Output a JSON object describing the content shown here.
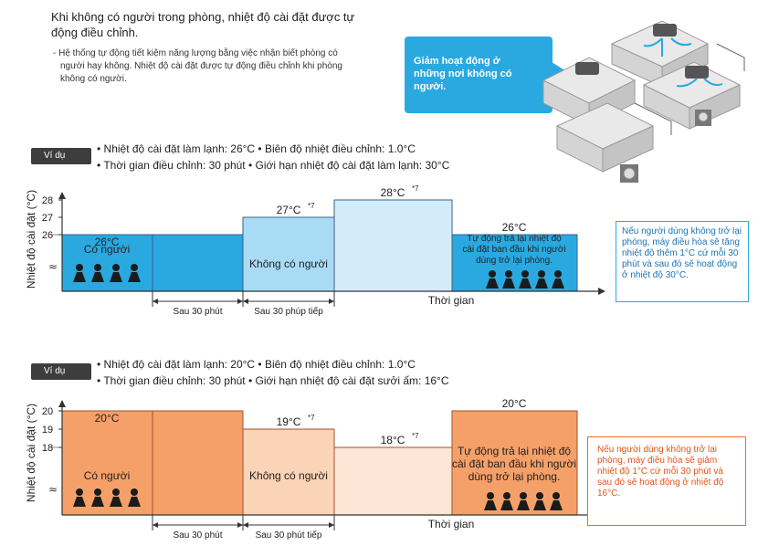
{
  "intro": {
    "title": "Khi không có người trong phòng, nhiệt độ cài đặt được tự động điều chỉnh.",
    "note": "- Hệ thống tự động tiết kiệm năng lượng bằng việc nhận biết phòng có người hay không. Nhiệt độ cài đặt được tự động điều chỉnh khi phòng không có người."
  },
  "callout": {
    "text": "Giảm hoạt động ở những nơi không có người."
  },
  "colors": {
    "blue_dark": "#29a9e0",
    "blue_light": "#d4ecfa",
    "orange_dark": "#f5a068",
    "orange_light": "#fde6d6",
    "outline": "#3b5f8a"
  },
  "examples": [
    {
      "tag": "Ví dụ",
      "line1": "• Nhiệt độ cài đặt làm lạnh: 26°C   • Biên độ nhiệt điều chỉnh: 1.0°C",
      "line2": "• Thời gian điều chỉnh: 30 phút   • Giới hạn nhiệt độ cài đặt làm lạnh: 30°C",
      "note": "Nếu người dùng không trở lại phòng, máy điều hòa sẽ tăng nhiệt độ thêm 1°C cứ mỗi 30 phút và sau đó sẽ hoạt động ở nhiệt độ 30°C."
    },
    {
      "tag": "Ví dụ",
      "line1": "• Nhiệt độ cài đặt làm lạnh: 20°C   • Biên độ nhiệt điều chỉnh: 1.0°C",
      "line2": "• Thời gian điều chỉnh: 30 phút   • Giới hạn nhiệt độ cài đặt sưởi ấm: 16°C",
      "note": "Nếu người dùng không trở lại phòng, máy điều hòa sẽ giảm nhiệt độ 1°C cứ mỗi 30 phút và sau đó sẽ hoạt động ở nhiệt độ 16°C."
    }
  ],
  "chart_data": [
    {
      "type": "area",
      "ylabel": "Nhiệt độ cài đặt (°C)",
      "xlabel": "Thời gian",
      "yticks": [
        26,
        27,
        28
      ],
      "segments": [
        {
          "label": "26°C",
          "value": 26
        },
        {
          "label": "",
          "value": 26
        },
        {
          "label": "27°C *7",
          "value": 27
        },
        {
          "label": "28°C *7",
          "value": 28
        },
        {
          "label": "26°C",
          "value": 26
        }
      ],
      "region_labels": [
        "Có người",
        "Không có người",
        "Tự động trả lại nhiệt độ cài đặt ban đầu khi người dùng trở lại phòng."
      ],
      "intervals": [
        "Sau 30 phút",
        "Sau 30 phúp tiếp"
      ]
    },
    {
      "type": "area",
      "ylabel": "Nhiệt độ cài đặt (°C)",
      "xlabel": "Thời gian",
      "yticks": [
        18,
        19,
        20
      ],
      "segments": [
        {
          "label": "20°C",
          "value": 20
        },
        {
          "label": "",
          "value": 20
        },
        {
          "label": "19°C *7",
          "value": 19
        },
        {
          "label": "18°C *7",
          "value": 18
        },
        {
          "label": "20°C",
          "value": 20
        }
      ],
      "region_labels": [
        "Có người",
        "Không có người",
        "Tự động trả lại nhiệt độ cài đặt ban đầu khi người dùng trở lại phòng."
      ],
      "intervals": [
        "Sau 30 phút",
        "Sau 30 phút tiếp"
      ]
    }
  ]
}
